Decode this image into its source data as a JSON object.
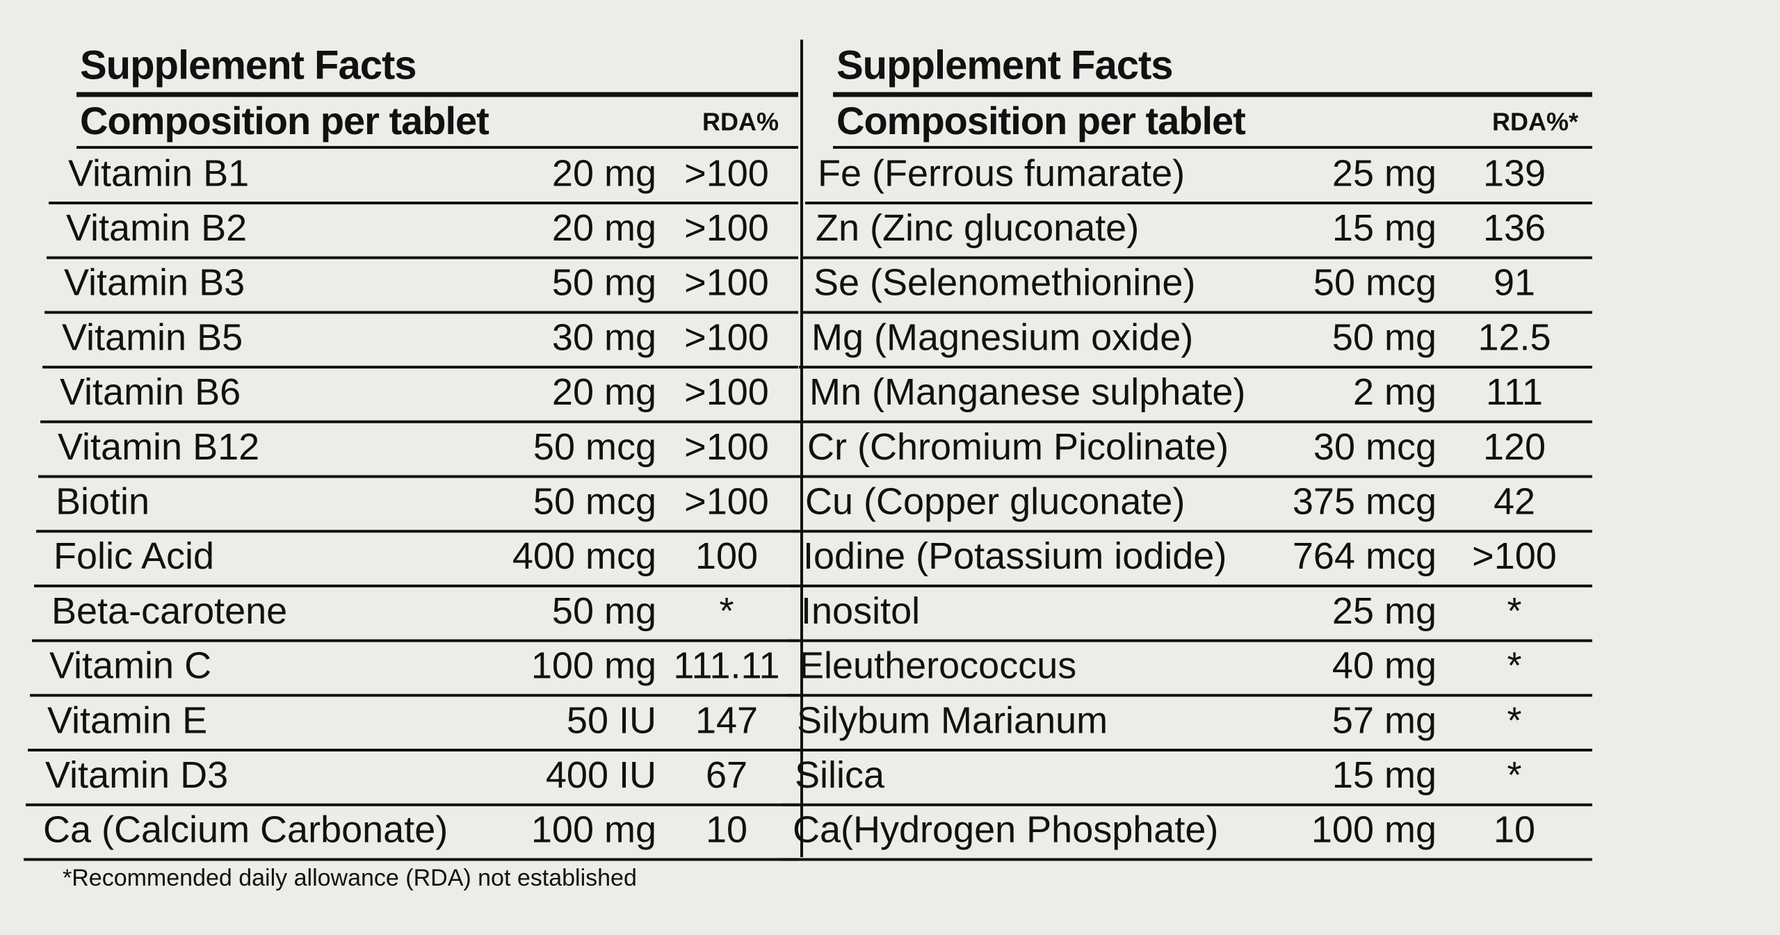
{
  "tables": [
    {
      "title": "Supplement Facts",
      "header": [
        "Composition per tablet",
        "RDA%"
      ],
      "rows": [
        [
          "Vitamin B1",
          "20 mg",
          ">100"
        ],
        [
          "Vitamin B2",
          "20 mg",
          ">100"
        ],
        [
          "Vitamin B3",
          "50 mg",
          ">100"
        ],
        [
          "Vitamin B5",
          "30 mg",
          ">100"
        ],
        [
          "Vitamin B6",
          "20 mg",
          ">100"
        ],
        [
          "Vitamin B12",
          "50 mcg",
          ">100"
        ],
        [
          "Biotin",
          "50 mcg",
          ">100"
        ],
        [
          "Folic Acid",
          "400 mcg",
          "100"
        ],
        [
          "Beta-carotene",
          "50 mg",
          "*"
        ],
        [
          "Vitamin C",
          "100 mg",
          "111.11"
        ],
        [
          "Vitamin E",
          "50 IU",
          "147"
        ],
        [
          "Vitamin D3",
          "400 IU",
          "67"
        ],
        [
          "Ca (Calcium Carbonate)",
          "100 mg",
          "10"
        ]
      ]
    },
    {
      "title": "Supplement Facts",
      "header": [
        "Composition per tablet",
        "RDA%*"
      ],
      "rows": [
        [
          "Fe (Ferrous fumarate)",
          "25 mg",
          "139"
        ],
        [
          "Zn (Zinc gluconate)",
          "15 mg",
          "136"
        ],
        [
          "Se (Selenomethionine)",
          "50 mcg",
          "91"
        ],
        [
          "Mg (Magnesium oxide)",
          "50 mg",
          "12.5"
        ],
        [
          "Mn (Manganese sulphate)",
          "2 mg",
          "111"
        ],
        [
          "Cr (Chromium Picolinate)",
          "30 mcg",
          "120"
        ],
        [
          "Cu (Copper gluconate)",
          "375 mcg",
          "42"
        ],
        [
          "Iodine (Potassium iodide)",
          "764 mcg",
          ">100"
        ],
        [
          "Inositol",
          "25 mg",
          "*"
        ],
        [
          "Eleutherococcus",
          "40 mg",
          "*"
        ],
        [
          "Silybum Marianum",
          "57 mg",
          "*"
        ],
        [
          "Silica",
          "15 mg",
          "*"
        ],
        [
          "Ca(Hydrogen Phosphate)",
          "100 mg",
          "10"
        ]
      ]
    }
  ],
  "footnote": "*Recommended daily allowance (RDA) not established"
}
